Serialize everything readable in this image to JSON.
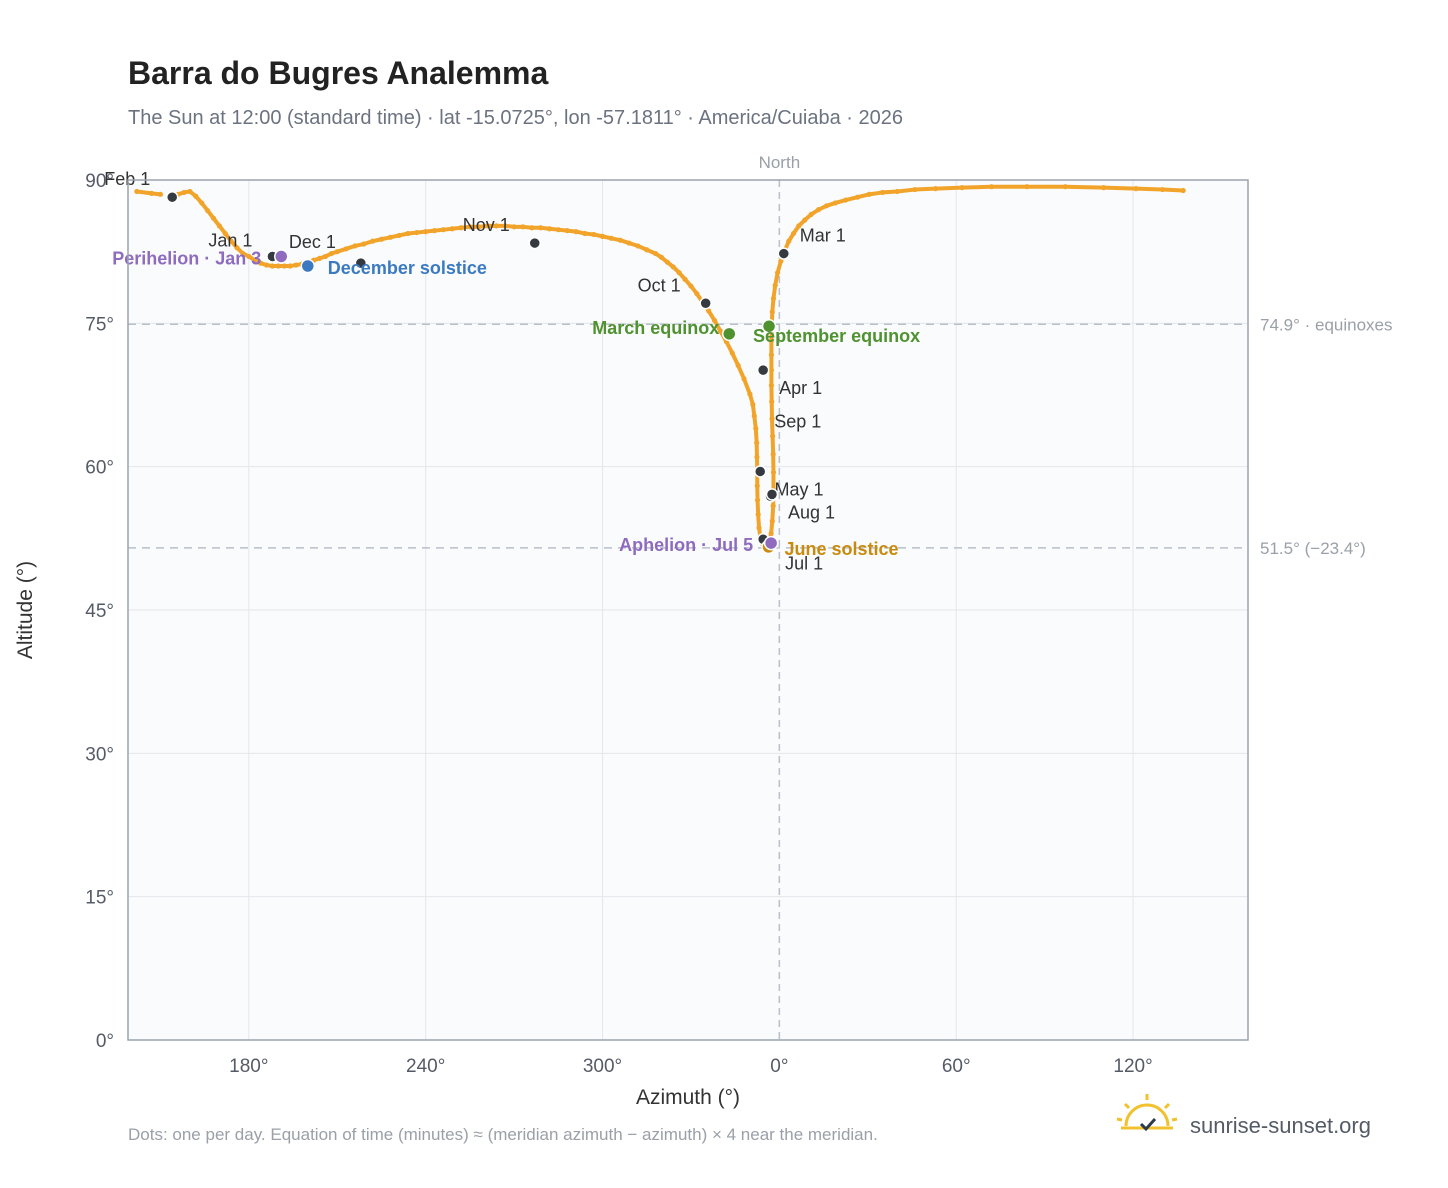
{
  "colors": {
    "path": "#f2a42a",
    "month_marker": "#343a40",
    "perihelion": "#8e6bbf",
    "december_solstice": "#3b7ac0",
    "equinox": "#4f922f",
    "june_solstice": "#c98a0e",
    "aphelion": "#8e6bbf",
    "plot_bg": "#f9fbfd",
    "grid": "#e3e7ec",
    "reference_line": "#b9c0c9",
    "brand_sun": "#f2c12e"
  },
  "brand": {
    "icon": "sunrise-check-icon",
    "text": "sunrise-sunset.org"
  },
  "footnote": "Dots: one per day. Equation of time (minutes) ≈ (meridian azimuth − azimuth) × 4 near the meridian.",
  "chart_data": {
    "type": "scatter",
    "title": "Barra do Bugres Analemma",
    "subtitle": "The Sun at 12:00 (standard time) · lat -15.0725°, lon -57.1811° · America/Cuiaba · 2026",
    "xlabel": "Azimuth (°)",
    "ylabel": "Altitude (°)",
    "xlim": [
      139,
      159
    ],
    "ylim": [
      0,
      90
    ],
    "x_axis_wraps_at": 360,
    "x_ticks": [
      180,
      240,
      300,
      0,
      60,
      120
    ],
    "x_tick_labels": [
      "180°",
      "240°",
      "300°",
      "0°",
      "60°",
      "120°"
    ],
    "y_ticks": [
      0,
      15,
      30,
      45,
      60,
      75,
      90
    ],
    "y_tick_labels": [
      "0°",
      "15°",
      "30°",
      "45°",
      "60°",
      "75°",
      "90°"
    ],
    "grid": true,
    "meridian": {
      "azimuth": 0,
      "label": "North"
    },
    "reference_lines": [
      {
        "altitude": 74.9,
        "label": "74.9° · equinoxes"
      },
      {
        "altitude": 51.5,
        "label": "51.5° (−23.4°)"
      }
    ],
    "path_points": [
      [
        154,
        88.3
      ],
      [
        156,
        88.5
      ],
      [
        158,
        88.7
      ],
      [
        160,
        88.8
      ],
      [
        162,
        88.3
      ],
      [
        164,
        87.6
      ],
      [
        166,
        86.8
      ],
      [
        168,
        86.0
      ],
      [
        170,
        85.2
      ],
      [
        172,
        84.4
      ],
      [
        174,
        83.6
      ],
      [
        176,
        82.9
      ],
      [
        178,
        82.3
      ],
      [
        180,
        82.0
      ],
      [
        182,
        81.6
      ],
      [
        184,
        81.3
      ],
      [
        186,
        81.1
      ],
      [
        188,
        81.0
      ],
      [
        190,
        81.0
      ],
      [
        192,
        81.0
      ],
      [
        194,
        81.0
      ],
      [
        196,
        81.1
      ],
      [
        198,
        81.2
      ],
      [
        200,
        81.4
      ],
      [
        202,
        81.6
      ],
      [
        204,
        81.8
      ],
      [
        206,
        82.0
      ],
      [
        208,
        82.3
      ],
      [
        210,
        82.5
      ],
      [
        213,
        82.8
      ],
      [
        216,
        83.1
      ],
      [
        219,
        83.3
      ],
      [
        222,
        83.6
      ],
      [
        225,
        83.8
      ],
      [
        228,
        84.0
      ],
      [
        231,
        84.2
      ],
      [
        234,
        84.4
      ],
      [
        237,
        84.5
      ],
      [
        240,
        84.6
      ],
      [
        243,
        84.7
      ],
      [
        246,
        84.8
      ],
      [
        249,
        84.9
      ],
      [
        252,
        85.0
      ],
      [
        255,
        85.1
      ],
      [
        258,
        85.1
      ],
      [
        261,
        85.2
      ],
      [
        264,
        85.2
      ],
      [
        267,
        85.2
      ],
      [
        270,
        85.1
      ],
      [
        273,
        85.1
      ],
      [
        276,
        85.0
      ],
      [
        279,
        85.0
      ],
      [
        282,
        84.9
      ],
      [
        285,
        84.8
      ],
      [
        288,
        84.7
      ],
      [
        291,
        84.6
      ],
      [
        294,
        84.4
      ],
      [
        297,
        84.3
      ],
      [
        300,
        84.1
      ],
      [
        303,
        83.9
      ],
      [
        306,
        83.7
      ],
      [
        309,
        83.4
      ],
      [
        312,
        83.1
      ],
      [
        315,
        82.7
      ],
      [
        318,
        82.3
      ],
      [
        320,
        81.9
      ],
      [
        322,
        81.4
      ],
      [
        324,
        80.9
      ],
      [
        326,
        80.3
      ],
      [
        328,
        79.6
      ],
      [
        330,
        78.9
      ],
      [
        332,
        78.1
      ],
      [
        334,
        77.2
      ],
      [
        336,
        76.3
      ],
      [
        338,
        75.3
      ],
      [
        340,
        74.2
      ],
      [
        342,
        73.1
      ],
      [
        344,
        71.9
      ],
      [
        346,
        70.6
      ],
      [
        348,
        69.2
      ],
      [
        350,
        67.6
      ],
      [
        351,
        66.5
      ],
      [
        351.5,
        65.3
      ],
      [
        352,
        64.0
      ],
      [
        352.3,
        62.5
      ],
      [
        352.4,
        61.0
      ],
      [
        352.5,
        59.5
      ],
      [
        352.5,
        58.0
      ],
      [
        352.6,
        56.5
      ],
      [
        352.8,
        55.0
      ],
      [
        353.1,
        53.6
      ],
      [
        353.6,
        52.5
      ],
      [
        354.3,
        51.9
      ],
      [
        355.1,
        51.6
      ],
      [
        355.9,
        51.6
      ],
      [
        356.6,
        52.1
      ],
      [
        357.2,
        53.0
      ],
      [
        357.6,
        54.3
      ],
      [
        357.9,
        55.9
      ],
      [
        358.0,
        57.6
      ],
      [
        358.0,
        59.4
      ],
      [
        357.9,
        61.3
      ],
      [
        357.7,
        63.2
      ],
      [
        357.5,
        65.0
      ],
      [
        357.4,
        66.8
      ],
      [
        357.3,
        68.5
      ],
      [
        357.3,
        70.1
      ],
      [
        357.3,
        71.7
      ],
      [
        357.3,
        73.2
      ],
      [
        357.4,
        74.7
      ],
      [
        357.6,
        76.2
      ],
      [
        358.0,
        77.6
      ],
      [
        358.6,
        79.0
      ],
      [
        359.4,
        80.3
      ],
      [
        0.5,
        81.5
      ],
      [
        1.8,
        82.6
      ],
      [
        3.2,
        83.6
      ],
      [
        4.8,
        84.4
      ],
      [
        6.6,
        85.2
      ],
      [
        8.6,
        85.8
      ],
      [
        10.8,
        86.4
      ],
      [
        13.3,
        86.9
      ],
      [
        16.0,
        87.3
      ],
      [
        19.0,
        87.6
      ],
      [
        22.5,
        87.9
      ],
      [
        26.5,
        88.2
      ],
      [
        30.5,
        88.5
      ],
      [
        35.0,
        88.7
      ],
      [
        40.0,
        88.8
      ],
      [
        46.0,
        89.0
      ],
      [
        53.0,
        89.1
      ],
      [
        62.0,
        89.2
      ],
      [
        72.0,
        89.3
      ],
      [
        84.0,
        89.3
      ],
      [
        97.0,
        89.3
      ],
      [
        110.0,
        89.2
      ],
      [
        121.0,
        89.1
      ],
      [
        130.0,
        89.0
      ],
      [
        137.0,
        88.9
      ],
      [
        142.0,
        88.8
      ],
      [
        147.0,
        88.6
      ],
      [
        150.0,
        88.5
      ]
    ],
    "month_markers": [
      {
        "label": "Jan 1",
        "x": 188,
        "y": 82.0,
        "dx": -64,
        "dy": -10
      },
      {
        "label": "Feb 1",
        "x": 154,
        "y": 88.2,
        "dx": -68,
        "dy": -12
      },
      {
        "label": "Mar 1",
        "x": 1.5,
        "y": 82.3,
        "dx": 16,
        "dy": -12
      },
      {
        "label": "Apr 1",
        "x": 354.5,
        "y": 70.1,
        "dx": 16,
        "dy": 24
      },
      {
        "label": "May 1",
        "x": 357,
        "y": 56.9,
        "dx": 4,
        "dy": -1
      },
      {
        "label": "Jul 1",
        "x": 354.5,
        "y": 52.4,
        "dx": 22,
        "dy": 30
      },
      {
        "label": "Aug 1",
        "x": 357.5,
        "y": 57.1,
        "dx": 16,
        "dy": 24
      },
      {
        "label": "Sep 1",
        "x": 353.5,
        "y": 59.5,
        "dx": 14,
        "dy": -44
      },
      {
        "label": "Oct 1",
        "x": 335,
        "y": 77.1,
        "dx": -68,
        "dy": -12
      },
      {
        "label": "Nov 1",
        "x": 277,
        "y": 83.4,
        "dx": -72,
        "dy": -12
      },
      {
        "label": "Dec 1",
        "x": 218,
        "y": 81.3,
        "dx": -72,
        "dy": -15
      }
    ],
    "events": [
      {
        "label": "Perihelion · Jan 3",
        "x": 191,
        "y": 82.0,
        "color_key": "perihelion",
        "anchor": "end",
        "dx": -20,
        "dy": 8
      },
      {
        "label": "December solstice",
        "x": 200,
        "y": 81.0,
        "color_key": "december_solstice",
        "anchor": "start",
        "dx": 20,
        "dy": 8
      },
      {
        "label": "March equinox",
        "x": 343,
        "y": 73.9,
        "color_key": "equinox",
        "anchor": "end",
        "dx": -10,
        "dy": 0
      },
      {
        "label": "September equinox",
        "x": 356.5,
        "y": 74.7,
        "color_key": "equinox",
        "anchor": "start",
        "dx": -16,
        "dy": 16
      },
      {
        "label": "June solstice",
        "x": 356.3,
        "y": 51.6,
        "color_key": "june_solstice",
        "anchor": "start",
        "dx": 16,
        "dy": 8
      },
      {
        "label": "Aphelion · Jul 5",
        "x": 357.2,
        "y": 52.0,
        "color_key": "aphelion",
        "anchor": "end",
        "dx": -18,
        "dy": 8
      }
    ]
  }
}
